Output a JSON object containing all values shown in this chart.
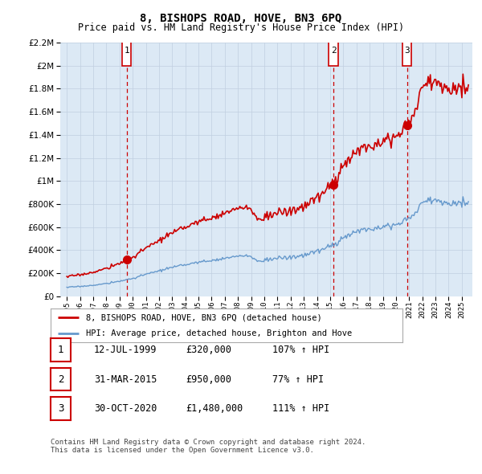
{
  "title": "8, BISHOPS ROAD, HOVE, BN3 6PQ",
  "subtitle": "Price paid vs. HM Land Registry's House Price Index (HPI)",
  "sale_dates": [
    "12-JUL-1999",
    "31-MAR-2015",
    "30-OCT-2020"
  ],
  "sale_prices": [
    320000,
    950000,
    1480000
  ],
  "sale_labels": [
    "1",
    "2",
    "3"
  ],
  "sale_hpi_pct": [
    "107% ↑ HPI",
    "77% ↑ HPI",
    "111% ↑ HPI"
  ],
  "legend_property": "8, BISHOPS ROAD, HOVE, BN3 6PQ (detached house)",
  "legend_hpi": "HPI: Average price, detached house, Brighton and Hove",
  "footnote": "Contains HM Land Registry data © Crown copyright and database right 2024.\nThis data is licensed under the Open Government Licence v3.0.",
  "property_color": "#cc0000",
  "hpi_color": "#6699cc",
  "dashed_color": "#cc0000",
  "chart_bg_color": "#dce9f5",
  "background_color": "#ffffff",
  "ylim": [
    0,
    2200000
  ],
  "yticks": [
    0,
    200000,
    400000,
    600000,
    800000,
    1000000,
    1200000,
    1400000,
    1600000,
    1800000,
    2000000,
    2200000
  ],
  "sale_years_dec": [
    1999.542,
    2015.25,
    2020.833
  ]
}
